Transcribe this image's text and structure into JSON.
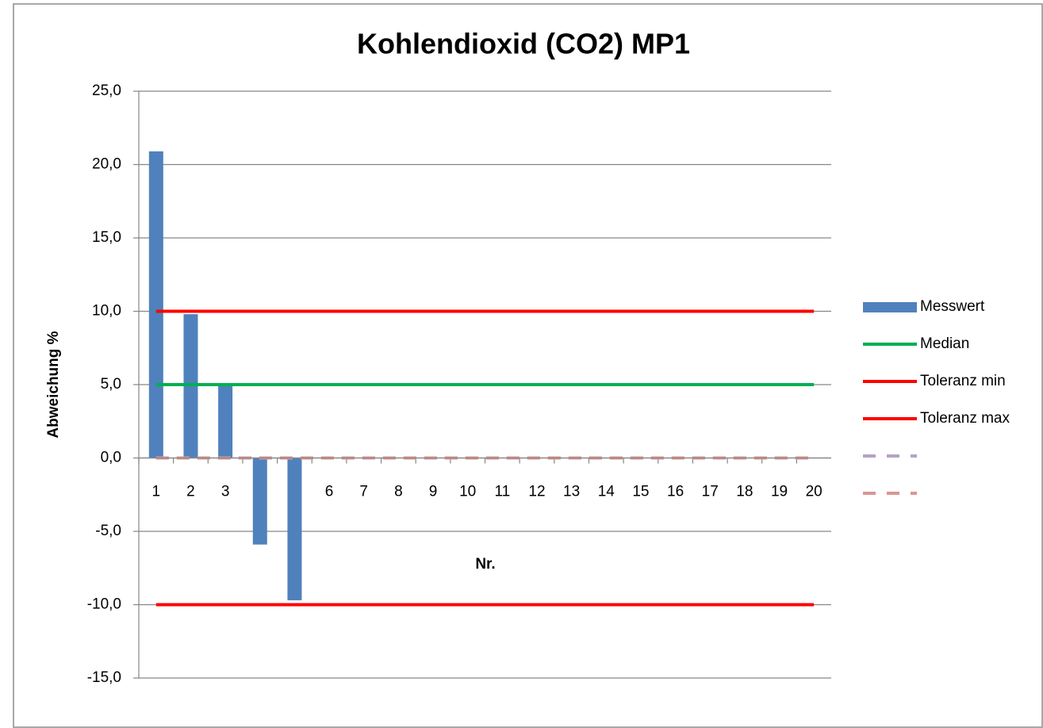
{
  "chart_data": {
    "type": "combo",
    "title": "Kohlendioxid (CO2) MP1",
    "x_label": "Nr.",
    "y_label": "Abweichung %",
    "categories": [
      "1",
      "2",
      "3",
      "4",
      "5",
      "6",
      "7",
      "8",
      "9",
      "10",
      "11",
      "12",
      "13",
      "14",
      "15",
      "16",
      "17",
      "18",
      "19",
      "20"
    ],
    "series": [
      {
        "name": "Messwert",
        "type": "bar",
        "color": "#4f81bd",
        "values": [
          20.9,
          9.8,
          5.1,
          -5.9,
          -9.7,
          null,
          null,
          null,
          null,
          null,
          null,
          null,
          null,
          null,
          null,
          null,
          null,
          null,
          null,
          null
        ]
      },
      {
        "name": "Median",
        "type": "line",
        "color": "#00b050",
        "values": [
          5.0,
          5.0,
          5.0,
          5.0,
          5.0,
          5.0,
          5.0,
          5.0,
          5.0,
          5.0,
          5.0,
          5.0,
          5.0,
          5.0,
          5.0,
          5.0,
          5.0,
          5.0,
          5.0,
          5.0
        ]
      },
      {
        "name": "Toleranz min",
        "type": "line",
        "color": "#ff0000",
        "values": [
          -10,
          -10,
          -10,
          -10,
          -10,
          -10,
          -10,
          -10,
          -10,
          -10,
          -10,
          -10,
          -10,
          -10,
          -10,
          -10,
          -10,
          -10,
          -10,
          -10
        ]
      },
      {
        "name": "Toleranz max",
        "type": "line",
        "color": "#ff0000",
        "values": [
          10,
          10,
          10,
          10,
          10,
          10,
          10,
          10,
          10,
          10,
          10,
          10,
          10,
          10,
          10,
          10,
          10,
          10,
          10,
          10
        ]
      },
      {
        "type": "line",
        "dashed": true,
        "color": "#b3a2c7",
        "values": [
          0,
          0,
          0,
          0,
          0,
          0,
          0,
          0,
          0,
          0,
          0,
          0,
          0,
          0,
          0,
          0,
          0,
          0,
          0,
          0
        ]
      },
      {
        "type": "line",
        "dashed": true,
        "color": "#d99694",
        "values": [
          0,
          0,
          0,
          0,
          0,
          0,
          0,
          0,
          0,
          0,
          0,
          0,
          0,
          0,
          0,
          0,
          0,
          0,
          0,
          0
        ]
      }
    ],
    "ylim": [
      -15,
      25
    ],
    "yticks": [
      {
        "value": -15,
        "label": "-15,0"
      },
      {
        "value": -10,
        "label": "-10,0"
      },
      {
        "value": -5,
        "label": "-5,0"
      },
      {
        "value": 0,
        "label": "0,0"
      },
      {
        "value": 5,
        "label": "5,0"
      },
      {
        "value": 10,
        "label": "10,0"
      },
      {
        "value": 15,
        "label": "15,0"
      },
      {
        "value": 20,
        "label": "20,0"
      },
      {
        "value": 25,
        "label": "25,0"
      }
    ],
    "grid": true,
    "legend": "right"
  }
}
